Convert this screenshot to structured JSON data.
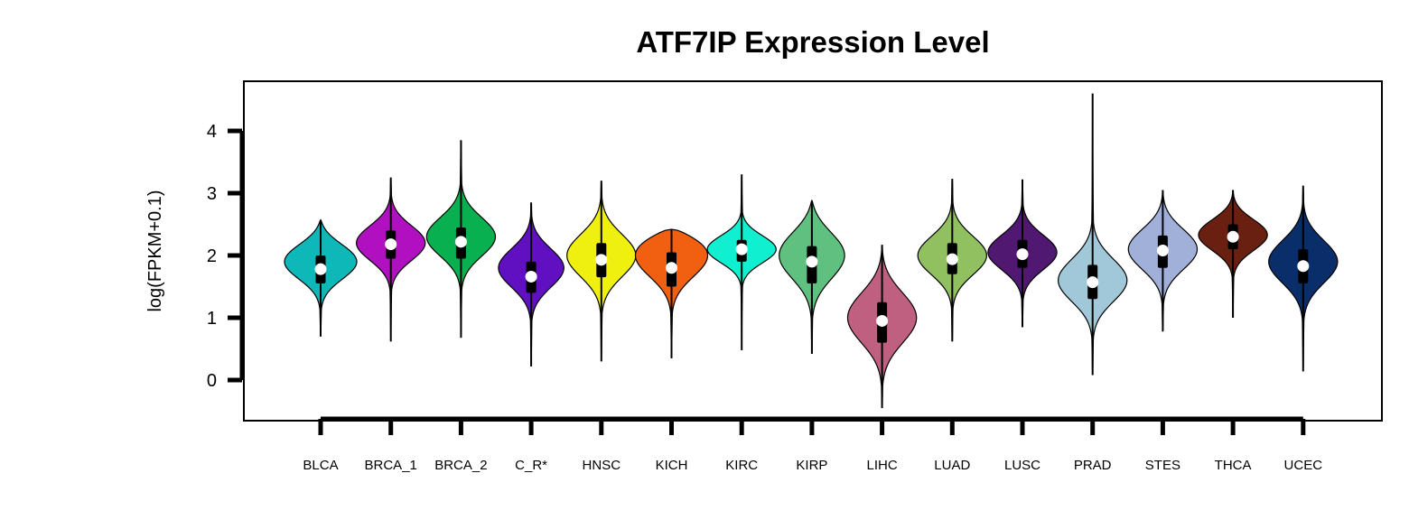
{
  "chart_data": {
    "type": "violin",
    "title": "ATF7IP Expression Level",
    "xlabel": "",
    "ylabel": "log(FPKM+0.1)",
    "ylim": [
      -0.65,
      4.8
    ],
    "yticks": [
      0,
      1,
      2,
      3,
      4
    ],
    "legend": "none",
    "grid": false,
    "categories": [
      "BLCA",
      "BRCA_1",
      "BRCA_2",
      "C_R*",
      "HNSC",
      "KICH",
      "KIRC",
      "KIRP",
      "LIHC",
      "LUAD",
      "LUSC",
      "PRAD",
      "STES",
      "THCA",
      "UCEC"
    ],
    "violins": [
      {
        "category": "BLCA",
        "color": "#0FB8B8",
        "min": 0.7,
        "q1": 1.55,
        "median": 1.78,
        "q3": 2.0,
        "max": 2.57,
        "mode": 1.9,
        "halfwidth": 0.42
      },
      {
        "category": "BRCA_1",
        "color": "#B010C0",
        "min": 0.62,
        "q1": 1.95,
        "median": 2.18,
        "q3": 2.4,
        "max": 3.25,
        "mode": 2.2,
        "halfwidth": 0.4
      },
      {
        "category": "BRCA_2",
        "color": "#08B050",
        "min": 0.68,
        "q1": 1.95,
        "median": 2.22,
        "q3": 2.45,
        "max": 3.85,
        "mode": 2.3,
        "halfwidth": 0.4
      },
      {
        "category": "C_R*",
        "color": "#6010C0",
        "min": 0.22,
        "q1": 1.4,
        "median": 1.66,
        "q3": 1.9,
        "max": 2.85,
        "mode": 1.8,
        "halfwidth": 0.38
      },
      {
        "category": "HNSC",
        "color": "#F0F010",
        "min": 0.3,
        "q1": 1.65,
        "median": 1.93,
        "q3": 2.2,
        "max": 3.2,
        "mode": 2.0,
        "halfwidth": 0.4
      },
      {
        "category": "KICH",
        "color": "#F06010",
        "min": 0.35,
        "q1": 1.5,
        "median": 1.8,
        "q3": 2.05,
        "max": 2.42,
        "mode": 2.0,
        "halfwidth": 0.42
      },
      {
        "category": "KIRC",
        "color": "#10F0D0",
        "min": 0.48,
        "q1": 1.9,
        "median": 2.1,
        "q3": 2.25,
        "max": 3.3,
        "mode": 2.1,
        "halfwidth": 0.4
      },
      {
        "category": "KIRP",
        "color": "#60C080",
        "min": 0.42,
        "q1": 1.55,
        "median": 1.9,
        "q3": 2.15,
        "max": 2.88,
        "mode": 2.0,
        "halfwidth": 0.38
      },
      {
        "category": "LIHC",
        "color": "#C06080",
        "min": -0.45,
        "q1": 0.6,
        "median": 0.95,
        "q3": 1.25,
        "max": 2.17,
        "mode": 1.0,
        "halfwidth": 0.4
      },
      {
        "category": "LUAD",
        "color": "#90C060",
        "min": 0.62,
        "q1": 1.7,
        "median": 1.94,
        "q3": 2.2,
        "max": 3.23,
        "mode": 2.0,
        "halfwidth": 0.4
      },
      {
        "category": "LUSC",
        "color": "#501870",
        "min": 0.85,
        "q1": 1.8,
        "median": 2.02,
        "q3": 2.25,
        "max": 3.22,
        "mode": 2.05,
        "halfwidth": 0.4
      },
      {
        "category": "PRAD",
        "color": "#A0C8D8",
        "min": 0.08,
        "q1": 1.3,
        "median": 1.57,
        "q3": 1.85,
        "max": 4.6,
        "mode": 1.6,
        "halfwidth": 0.4
      },
      {
        "category": "STES",
        "color": "#A0B0D8",
        "min": 0.78,
        "q1": 1.8,
        "median": 2.08,
        "q3": 2.32,
        "max": 3.05,
        "mode": 2.1,
        "halfwidth": 0.4
      },
      {
        "category": "THCA",
        "color": "#6A2010",
        "min": 1.0,
        "q1": 2.1,
        "median": 2.3,
        "q3": 2.5,
        "max": 3.05,
        "mode": 2.33,
        "halfwidth": 0.4
      },
      {
        "category": "UCEC",
        "color": "#0A2E6A",
        "min": 0.14,
        "q1": 1.55,
        "median": 1.83,
        "q3": 2.1,
        "max": 3.12,
        "mode": 1.9,
        "halfwidth": 0.4
      }
    ]
  }
}
